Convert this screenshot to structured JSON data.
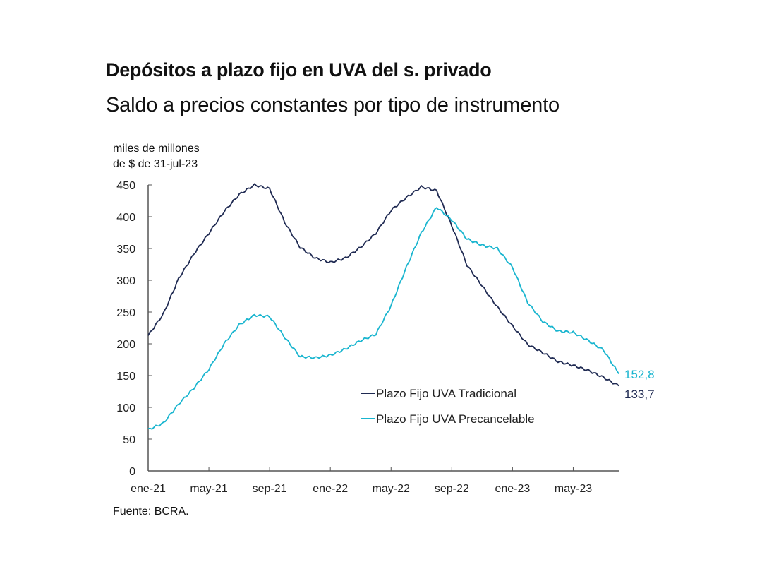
{
  "title": "Depósitos a plazo fijo en UVA del s. privado",
  "subtitle": "Saldo a precios constantes por tipo de instrumento",
  "source": "Fuente: BCRA.",
  "chart_data": {
    "type": "line",
    "ylabel_lines": [
      "miles de millones",
      "de $ de 31-jul-23"
    ],
    "ylim": [
      0,
      450
    ],
    "yticks": [
      0,
      50,
      100,
      150,
      200,
      250,
      300,
      350,
      400,
      450
    ],
    "xticks": [
      {
        "label": "ene-21",
        "month": 0
      },
      {
        "label": "may-21",
        "month": 4
      },
      {
        "label": "sep-21",
        "month": 8
      },
      {
        "label": "ene-22",
        "month": 12
      },
      {
        "label": "may-22",
        "month": 16
      },
      {
        "label": "sep-22",
        "month": 20
      },
      {
        "label": "ene-23",
        "month": 24
      },
      {
        "label": "may-23",
        "month": 28
      }
    ],
    "xlim_months": [
      0,
      31
    ],
    "legend_position": "center-right",
    "series": [
      {
        "name": "Plazo Fijo UVA Tradicional",
        "color": "#1f2a52",
        "end_label": "133,7",
        "values": [
          213,
          247,
          302,
          341,
          374,
          408,
          435,
          450,
          444,
          391,
          352,
          335,
          328,
          335,
          352,
          374,
          410,
          430,
          447,
          441,
          386,
          324,
          291,
          258,
          228,
          199,
          186,
          172,
          166,
          158,
          147,
          133.7
        ]
      },
      {
        "name": "Plazo Fijo UVA Precancelable",
        "color": "#19b5cf",
        "end_label": "152,8",
        "values": [
          65,
          75,
          105,
          130,
          160,
          200,
          230,
          245,
          243,
          210,
          180,
          178,
          182,
          192,
          205,
          215,
          260,
          320,
          375,
          415,
          395,
          365,
          355,
          350,
          320,
          265,
          235,
          220,
          218,
          205,
          190,
          152.8
        ]
      }
    ]
  }
}
